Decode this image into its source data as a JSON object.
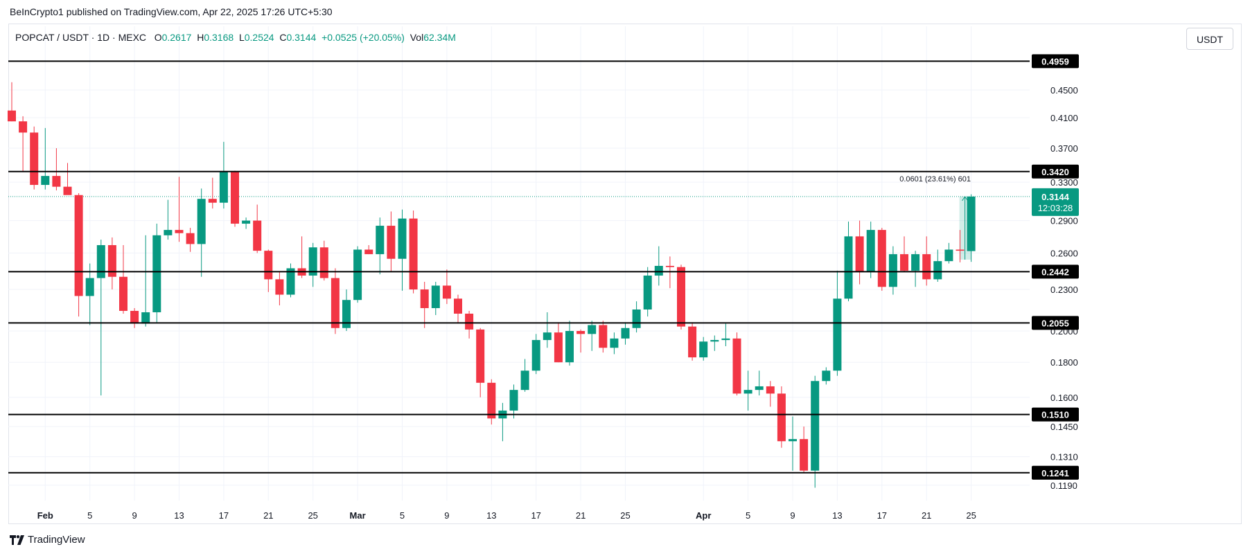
{
  "header": {
    "published": "BeInCrypto1 published on TradingView.com, Apr 22, 2025 17:26 UTC+5:30"
  },
  "legend": {
    "symbol": "POPCAT / USDT · 1D · MEXC",
    "o_label": "O",
    "o_value": "0.2617",
    "h_label": "H",
    "h_value": "0.3168",
    "l_label": "L",
    "l_value": "0.2524",
    "c_label": "C",
    "c_value": "0.3144",
    "change": "+0.0525 (+20.05%)",
    "vol_label": "Vol",
    "vol_value": "62.34M"
  },
  "currency_button": "USDT",
  "brand": {
    "name": "TradingView",
    "icon": "tradingview-logo-icon"
  },
  "colors": {
    "up": "#089981",
    "down": "#f23645",
    "line": "#000000",
    "grid": "#f0f3fa"
  },
  "chart_data": {
    "type": "candlestick",
    "symbol": "POPCAT/USDT",
    "interval": "1D",
    "exchange": "MEXC",
    "y_axis": {
      "scale": "log",
      "range": [
        0.113,
        0.52
      ],
      "ticks": [
        "0.4500",
        "0.4100",
        "0.3700",
        "0.3300",
        "0.2900",
        "0.2600",
        "0.2300",
        "0.2000",
        "0.1800",
        "0.1600",
        "0.1450",
        "0.1310",
        "0.1190"
      ]
    },
    "x_axis": {
      "start_day": "Jan 29",
      "ticks": [
        {
          "label": "Feb",
          "day": 3,
          "bold": true
        },
        {
          "label": "5",
          "day": 7
        },
        {
          "label": "9",
          "day": 11
        },
        {
          "label": "13",
          "day": 15
        },
        {
          "label": "17",
          "day": 19
        },
        {
          "label": "21",
          "day": 23
        },
        {
          "label": "25",
          "day": 27
        },
        {
          "label": "Mar",
          "day": 31,
          "bold": true
        },
        {
          "label": "5",
          "day": 35
        },
        {
          "label": "9",
          "day": 39
        },
        {
          "label": "13",
          "day": 43
        },
        {
          "label": "17",
          "day": 47
        },
        {
          "label": "21",
          "day": 51
        },
        {
          "label": "25",
          "day": 55
        },
        {
          "label": "Apr",
          "day": 62,
          "bold": true
        },
        {
          "label": "5",
          "day": 66
        },
        {
          "label": "9",
          "day": 70
        },
        {
          "label": "13",
          "day": 74
        },
        {
          "label": "17",
          "day": 78
        },
        {
          "label": "21",
          "day": 82
        },
        {
          "label": "25",
          "day": 86
        }
      ]
    },
    "horizontal_lines": [
      {
        "label": "0.4959",
        "value": 0.4959
      },
      {
        "label": "0.3420",
        "value": 0.342
      },
      {
        "label": "0.2442",
        "value": 0.2442
      },
      {
        "label": "0.2055",
        "value": 0.2055
      },
      {
        "label": "0.1510",
        "value": 0.151
      },
      {
        "label": "0.1241",
        "value": 0.1241
      }
    ],
    "last_price": {
      "value": 0.3144,
      "label": "0.3144",
      "countdown": "12:03:28"
    },
    "measure": {
      "label": "0.0601 (23.61%) 601",
      "from": 0.2543,
      "to": 0.3144
    },
    "candles": [
      {
        "o": 0.42,
        "h": 0.462,
        "l": 0.405,
        "c": 0.405
      },
      {
        "o": 0.405,
        "h": 0.412,
        "l": 0.342,
        "c": 0.39
      },
      {
        "o": 0.39,
        "h": 0.398,
        "l": 0.322,
        "c": 0.327
      },
      {
        "o": 0.327,
        "h": 0.396,
        "l": 0.322,
        "c": 0.337
      },
      {
        "o": 0.337,
        "h": 0.37,
        "l": 0.321,
        "c": 0.325
      },
      {
        "o": 0.325,
        "h": 0.352,
        "l": 0.317,
        "c": 0.316
      },
      {
        "o": 0.316,
        "h": 0.318,
        "l": 0.21,
        "c": 0.225
      },
      {
        "o": 0.225,
        "h": 0.251,
        "l": 0.204,
        "c": 0.239
      },
      {
        "o": 0.239,
        "h": 0.272,
        "l": 0.161,
        "c": 0.267
      },
      {
        "o": 0.267,
        "h": 0.274,
        "l": 0.23,
        "c": 0.24
      },
      {
        "o": 0.24,
        "h": 0.267,
        "l": 0.212,
        "c": 0.214
      },
      {
        "o": 0.214,
        "h": 0.216,
        "l": 0.202,
        "c": 0.205
      },
      {
        "o": 0.205,
        "h": 0.276,
        "l": 0.203,
        "c": 0.213
      },
      {
        "o": 0.213,
        "h": 0.287,
        "l": 0.206,
        "c": 0.276
      },
      {
        "o": 0.276,
        "h": 0.311,
        "l": 0.272,
        "c": 0.281
      },
      {
        "o": 0.281,
        "h": 0.336,
        "l": 0.27,
        "c": 0.278
      },
      {
        "o": 0.278,
        "h": 0.283,
        "l": 0.261,
        "c": 0.268
      },
      {
        "o": 0.268,
        "h": 0.323,
        "l": 0.24,
        "c": 0.312
      },
      {
        "o": 0.312,
        "h": 0.335,
        "l": 0.302,
        "c": 0.308
      },
      {
        "o": 0.308,
        "h": 0.378,
        "l": 0.302,
        "c": 0.342
      },
      {
        "o": 0.342,
        "h": 0.343,
        "l": 0.284,
        "c": 0.287
      },
      {
        "o": 0.287,
        "h": 0.293,
        "l": 0.282,
        "c": 0.29
      },
      {
        "o": 0.29,
        "h": 0.306,
        "l": 0.26,
        "c": 0.262
      },
      {
        "o": 0.262,
        "h": 0.263,
        "l": 0.228,
        "c": 0.238
      },
      {
        "o": 0.238,
        "h": 0.244,
        "l": 0.218,
        "c": 0.226
      },
      {
        "o": 0.226,
        "h": 0.251,
        "l": 0.224,
        "c": 0.247
      },
      {
        "o": 0.247,
        "h": 0.275,
        "l": 0.239,
        "c": 0.241
      },
      {
        "o": 0.241,
        "h": 0.269,
        "l": 0.232,
        "c": 0.265
      },
      {
        "o": 0.265,
        "h": 0.271,
        "l": 0.237,
        "c": 0.239
      },
      {
        "o": 0.239,
        "h": 0.247,
        "l": 0.198,
        "c": 0.202
      },
      {
        "o": 0.202,
        "h": 0.23,
        "l": 0.2,
        "c": 0.222
      },
      {
        "o": 0.222,
        "h": 0.266,
        "l": 0.22,
        "c": 0.263
      },
      {
        "o": 0.263,
        "h": 0.267,
        "l": 0.259,
        "c": 0.259
      },
      {
        "o": 0.259,
        "h": 0.293,
        "l": 0.242,
        "c": 0.285
      },
      {
        "o": 0.285,
        "h": 0.299,
        "l": 0.244,
        "c": 0.255
      },
      {
        "o": 0.255,
        "h": 0.301,
        "l": 0.229,
        "c": 0.292
      },
      {
        "o": 0.292,
        "h": 0.3,
        "l": 0.227,
        "c": 0.23
      },
      {
        "o": 0.23,
        "h": 0.236,
        "l": 0.202,
        "c": 0.216
      },
      {
        "o": 0.216,
        "h": 0.236,
        "l": 0.211,
        "c": 0.233
      },
      {
        "o": 0.233,
        "h": 0.246,
        "l": 0.219,
        "c": 0.223
      },
      {
        "o": 0.223,
        "h": 0.226,
        "l": 0.205,
        "c": 0.212
      },
      {
        "o": 0.212,
        "h": 0.214,
        "l": 0.195,
        "c": 0.201
      },
      {
        "o": 0.201,
        "h": 0.202,
        "l": 0.16,
        "c": 0.168
      },
      {
        "o": 0.168,
        "h": 0.17,
        "l": 0.146,
        "c": 0.149
      },
      {
        "o": 0.149,
        "h": 0.157,
        "l": 0.138,
        "c": 0.153
      },
      {
        "o": 0.153,
        "h": 0.167,
        "l": 0.149,
        "c": 0.164
      },
      {
        "o": 0.164,
        "h": 0.182,
        "l": 0.163,
        "c": 0.175
      },
      {
        "o": 0.175,
        "h": 0.198,
        "l": 0.173,
        "c": 0.194
      },
      {
        "o": 0.194,
        "h": 0.213,
        "l": 0.189,
        "c": 0.199
      },
      {
        "o": 0.199,
        "h": 0.206,
        "l": 0.18,
        "c": 0.18
      },
      {
        "o": 0.18,
        "h": 0.207,
        "l": 0.178,
        "c": 0.2
      },
      {
        "o": 0.2,
        "h": 0.201,
        "l": 0.186,
        "c": 0.198
      },
      {
        "o": 0.198,
        "h": 0.207,
        "l": 0.187,
        "c": 0.204
      },
      {
        "o": 0.204,
        "h": 0.207,
        "l": 0.186,
        "c": 0.189
      },
      {
        "o": 0.189,
        "h": 0.199,
        "l": 0.185,
        "c": 0.195
      },
      {
        "o": 0.195,
        "h": 0.206,
        "l": 0.191,
        "c": 0.202
      },
      {
        "o": 0.202,
        "h": 0.221,
        "l": 0.199,
        "c": 0.215
      },
      {
        "o": 0.215,
        "h": 0.248,
        "l": 0.21,
        "c": 0.241
      },
      {
        "o": 0.241,
        "h": 0.266,
        "l": 0.233,
        "c": 0.249
      },
      {
        "o": 0.249,
        "h": 0.257,
        "l": 0.231,
        "c": 0.248
      },
      {
        "o": 0.248,
        "h": 0.25,
        "l": 0.201,
        "c": 0.203
      },
      {
        "o": 0.203,
        "h": 0.206,
        "l": 0.181,
        "c": 0.183
      },
      {
        "o": 0.183,
        "h": 0.196,
        "l": 0.181,
        "c": 0.193
      },
      {
        "o": 0.193,
        "h": 0.197,
        "l": 0.187,
        "c": 0.194
      },
      {
        "o": 0.194,
        "h": 0.205,
        "l": 0.19,
        "c": 0.195
      },
      {
        "o": 0.195,
        "h": 0.199,
        "l": 0.161,
        "c": 0.162
      },
      {
        "o": 0.162,
        "h": 0.175,
        "l": 0.153,
        "c": 0.164
      },
      {
        "o": 0.164,
        "h": 0.175,
        "l": 0.161,
        "c": 0.166
      },
      {
        "o": 0.166,
        "h": 0.169,
        "l": 0.155,
        "c": 0.162
      },
      {
        "o": 0.162,
        "h": 0.166,
        "l": 0.135,
        "c": 0.138
      },
      {
        "o": 0.138,
        "h": 0.15,
        "l": 0.125,
        "c": 0.139
      },
      {
        "o": 0.139,
        "h": 0.145,
        "l": 0.124,
        "c": 0.125
      },
      {
        "o": 0.125,
        "h": 0.172,
        "l": 0.118,
        "c": 0.169
      },
      {
        "o": 0.169,
        "h": 0.177,
        "l": 0.167,
        "c": 0.175
      },
      {
        "o": 0.175,
        "h": 0.245,
        "l": 0.172,
        "c": 0.223
      },
      {
        "o": 0.223,
        "h": 0.289,
        "l": 0.221,
        "c": 0.275
      },
      {
        "o": 0.275,
        "h": 0.29,
        "l": 0.234,
        "c": 0.244
      },
      {
        "o": 0.244,
        "h": 0.289,
        "l": 0.239,
        "c": 0.281
      },
      {
        "o": 0.281,
        "h": 0.283,
        "l": 0.229,
        "c": 0.232
      },
      {
        "o": 0.232,
        "h": 0.266,
        "l": 0.226,
        "c": 0.259
      },
      {
        "o": 0.259,
        "h": 0.275,
        "l": 0.244,
        "c": 0.245
      },
      {
        "o": 0.245,
        "h": 0.262,
        "l": 0.232,
        "c": 0.259
      },
      {
        "o": 0.259,
        "h": 0.275,
        "l": 0.233,
        "c": 0.238
      },
      {
        "o": 0.238,
        "h": 0.263,
        "l": 0.236,
        "c": 0.253
      },
      {
        "o": 0.253,
        "h": 0.269,
        "l": 0.251,
        "c": 0.263
      },
      {
        "o": 0.263,
        "h": 0.281,
        "l": 0.252,
        "c": 0.262
      },
      {
        "o": 0.2617,
        "h": 0.3168,
        "l": 0.2524,
        "c": 0.3144
      }
    ]
  }
}
